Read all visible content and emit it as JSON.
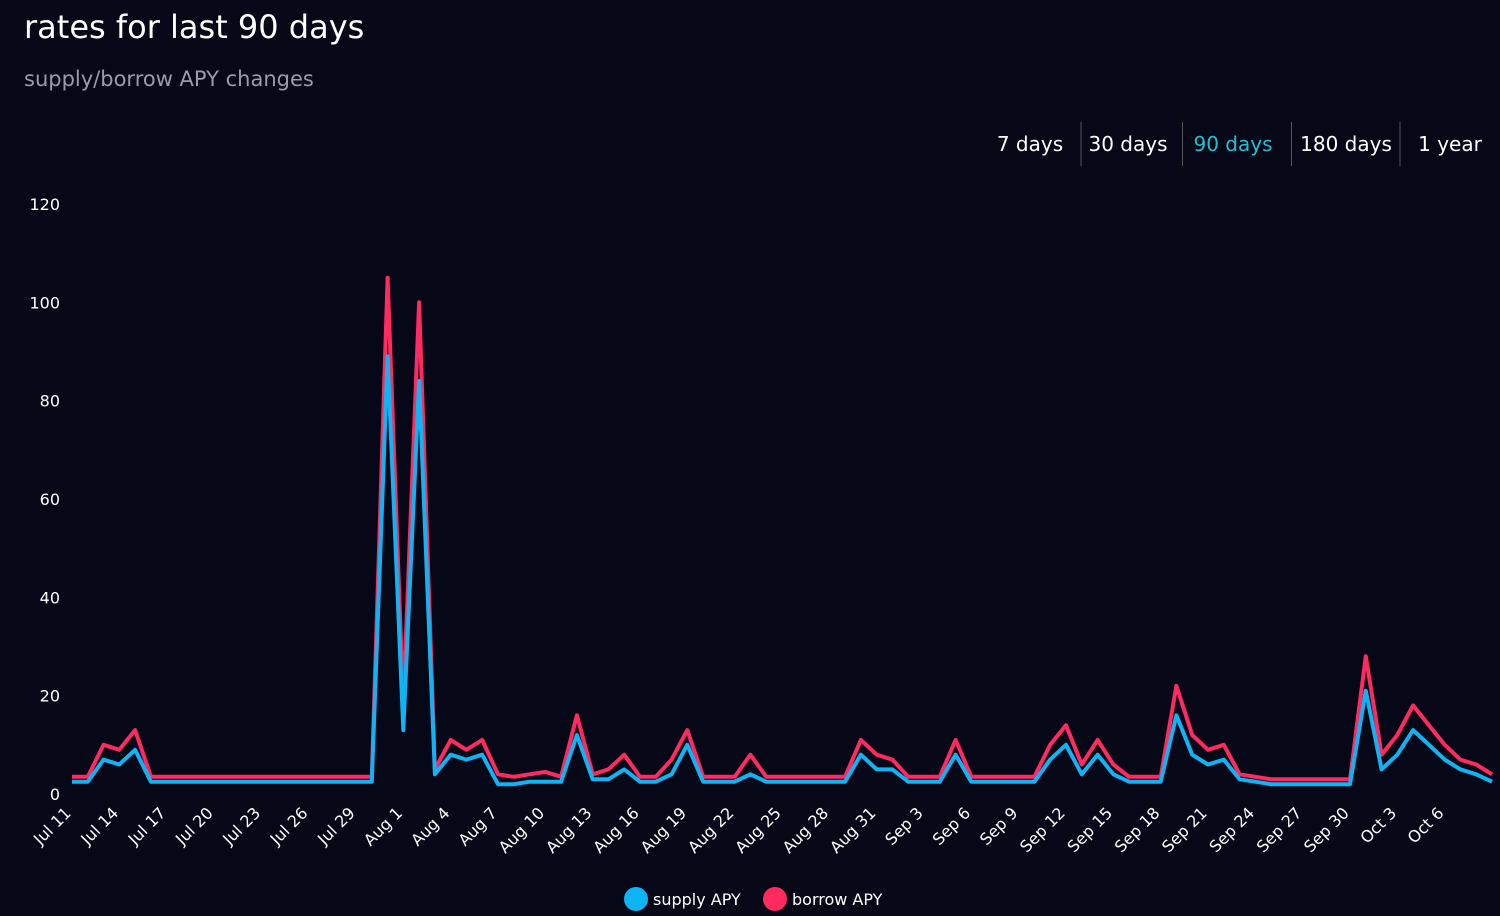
{
  "tabs": [
    "7 days",
    "30 days",
    "90 days",
    "180 days",
    "1 year"
  ],
  "active_tab": 2,
  "chart_data": {
    "type": "line",
    "title": "rates for last 90 days",
    "subtitle": "supply/borrow APY changes",
    "categories": [
      "Jul 11",
      null,
      null,
      "Jul 14",
      null,
      null,
      "Jul 17",
      null,
      null,
      "Jul 20",
      null,
      null,
      "Jul 23",
      null,
      null,
      "Jul 26",
      null,
      null,
      "Jul 29",
      null,
      null,
      "Aug 1",
      null,
      null,
      "Aug 4",
      null,
      null,
      "Aug 7",
      null,
      null,
      "Aug 10",
      null,
      null,
      "Aug 13",
      null,
      null,
      "Aug 16",
      null,
      null,
      "Aug 19",
      null,
      null,
      "Aug 22",
      null,
      null,
      "Aug 25",
      null,
      null,
      "Aug 28",
      null,
      null,
      "Aug 31",
      null,
      null,
      "Sep 3",
      null,
      null,
      "Sep 6",
      null,
      null,
      "Sep 9",
      null,
      null,
      "Sep 12",
      null,
      null,
      "Sep 15",
      null,
      null,
      "Sep 18",
      null,
      null,
      "Sep 21",
      null,
      null,
      "Sep 24",
      null,
      null,
      "Sep 27",
      null,
      null,
      "Sep 30",
      null,
      null,
      "Oct 3",
      null,
      null,
      "Oct 6",
      null,
      null,
      null
    ],
    "series": [
      {
        "name": "borrow APY",
        "color": "#ff2a5f",
        "values": [
          3.5,
          3.5,
          10,
          9,
          13,
          3.5,
          3.5,
          3.5,
          3.5,
          3.5,
          3.5,
          3.5,
          3.5,
          3.5,
          3.5,
          3.5,
          3.5,
          3.5,
          3.5,
          3.5,
          105,
          18,
          100,
          5,
          11,
          9,
          11,
          4,
          3.5,
          4,
          4.5,
          3.5,
          16,
          4,
          5,
          8,
          3.5,
          3.5,
          7,
          13,
          3.5,
          3.5,
          3.5,
          8,
          3.5,
          3.5,
          3.5,
          3.5,
          3.5,
          3.5,
          11,
          8,
          7,
          3.5,
          3.5,
          3.5,
          11,
          3.5,
          3.5,
          3.5,
          3.5,
          3.5,
          10,
          14,
          6,
          11,
          6,
          3.5,
          3.5,
          3.5,
          22,
          12,
          9,
          10,
          4,
          3.5,
          3,
          3,
          3,
          3,
          3,
          3,
          28,
          8,
          12,
          18,
          14,
          10,
          7,
          6,
          4
        ]
      },
      {
        "name": "supply APY",
        "color": "#0fb4f5",
        "values": [
          2.5,
          2.5,
          7,
          6,
          9,
          2.5,
          2.5,
          2.5,
          2.5,
          2.5,
          2.5,
          2.5,
          2.5,
          2.5,
          2.5,
          2.5,
          2.5,
          2.5,
          2.5,
          2.5,
          89,
          13,
          84,
          4,
          8,
          7,
          8,
          2,
          2,
          2.5,
          2.5,
          2.5,
          12,
          3,
          3,
          5,
          2.5,
          2.5,
          4,
          10,
          2.5,
          2.5,
          2.5,
          4,
          2.5,
          2.5,
          2.5,
          2.5,
          2.5,
          2.5,
          8,
          5,
          5,
          2.5,
          2.5,
          2.5,
          8,
          2.5,
          2.5,
          2.5,
          2.5,
          2.5,
          7,
          10,
          4,
          8,
          4,
          2.5,
          2.5,
          2.5,
          16,
          8,
          6,
          7,
          3,
          2.5,
          2,
          2,
          2,
          2,
          2,
          2,
          21,
          5,
          8,
          13,
          10,
          7,
          5,
          4,
          2.5
        ]
      }
    ],
    "ylim": [
      0,
      120
    ],
    "yticks": [
      0,
      20,
      40,
      60,
      80,
      100,
      120
    ],
    "grid": false
  }
}
